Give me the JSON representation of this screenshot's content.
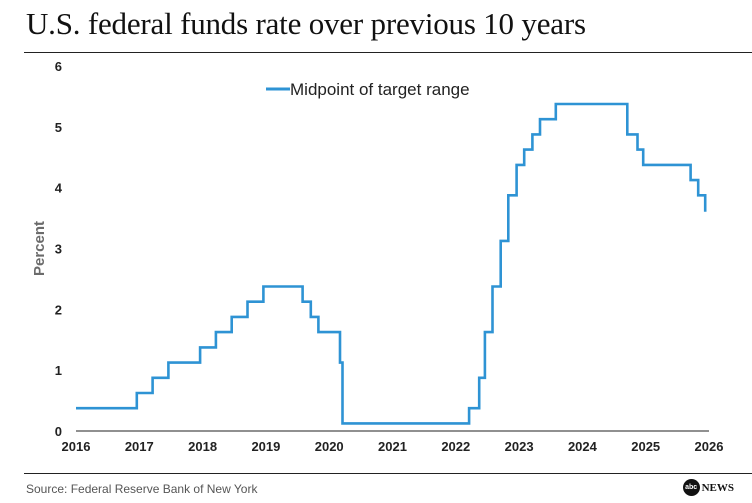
{
  "header": {
    "title": "U.S. federal funds rate over previous 10 years"
  },
  "footer": {
    "source": "Source: Federal Reserve Bank of New York",
    "logo_mark": "abc",
    "logo_word": "NEWS"
  },
  "chart_data": {
    "type": "line",
    "title": "U.S. federal funds rate over previous 10 years",
    "xlabel": "",
    "ylabel": "Percent",
    "xlim": [
      2016,
      2026
    ],
    "ylim": [
      0,
      6
    ],
    "x_ticks": [
      2016,
      2017,
      2018,
      2019,
      2020,
      2021,
      2022,
      2023,
      2024,
      2025,
      2026
    ],
    "y_ticks": [
      0,
      1,
      2,
      3,
      4,
      5,
      6
    ],
    "grid": false,
    "legend": {
      "position": "top-center",
      "entries": [
        "Midpoint of target range"
      ]
    },
    "series": [
      {
        "name": "Midpoint of target range",
        "color": "#2e93d4",
        "step": true,
        "points": [
          [
            2016.0,
            0.375
          ],
          [
            2016.96,
            0.625
          ],
          [
            2017.21,
            0.875
          ],
          [
            2017.46,
            1.125
          ],
          [
            2017.96,
            1.375
          ],
          [
            2018.21,
            1.625
          ],
          [
            2018.46,
            1.875
          ],
          [
            2018.71,
            2.125
          ],
          [
            2018.96,
            2.375
          ],
          [
            2019.58,
            2.125
          ],
          [
            2019.71,
            1.875
          ],
          [
            2019.83,
            1.625
          ],
          [
            2020.17,
            1.125
          ],
          [
            2020.21,
            0.125
          ],
          [
            2022.21,
            0.375
          ],
          [
            2022.37,
            0.875
          ],
          [
            2022.46,
            1.625
          ],
          [
            2022.58,
            2.375
          ],
          [
            2022.71,
            3.125
          ],
          [
            2022.83,
            3.875
          ],
          [
            2022.96,
            4.375
          ],
          [
            2023.08,
            4.625
          ],
          [
            2023.21,
            4.875
          ],
          [
            2023.33,
            5.125
          ],
          [
            2023.58,
            5.375
          ],
          [
            2024.71,
            4.875
          ],
          [
            2024.87,
            4.625
          ],
          [
            2024.96,
            4.375
          ],
          [
            2025.71,
            4.125
          ],
          [
            2025.83,
            3.875
          ],
          [
            2025.94,
            3.625
          ],
          [
            2025.96,
            3.625
          ]
        ]
      }
    ]
  }
}
